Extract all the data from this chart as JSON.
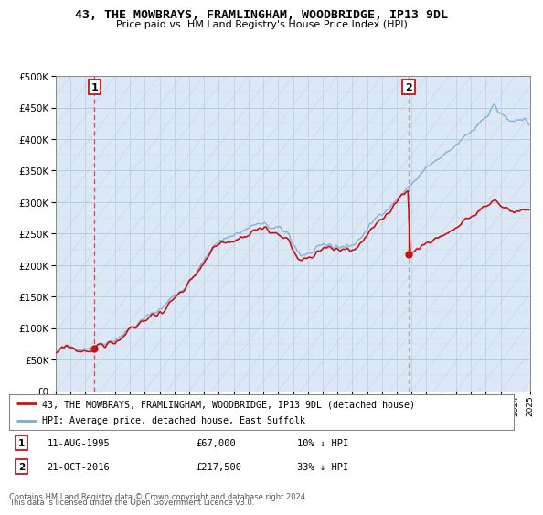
{
  "title": "43, THE MOWBRAYS, FRAMLINGHAM, WOODBRIDGE, IP13 9DL",
  "subtitle": "Price paid vs. HM Land Registry's House Price Index (HPI)",
  "ylim": [
    0,
    500000
  ],
  "yticks": [
    0,
    50000,
    100000,
    150000,
    200000,
    250000,
    300000,
    350000,
    400000,
    450000,
    500000
  ],
  "hpi_color": "#7aadd4",
  "price_color": "#cc1111",
  "marker_color": "#cc1111",
  "sale1_date": "11-AUG-1995",
  "sale1_price": 67000,
  "sale1_x": 1995.62,
  "sale2_date": "21-OCT-2016",
  "sale2_price": 217500,
  "sale2_x": 2016.8,
  "sale1_dashed_color": "#dd4444",
  "sale2_dashed_color": "#aaaaaa",
  "legend_price_label": "43, THE MOWBRAYS, FRAMLINGHAM, WOODBRIDGE, IP13 9DL (detached house)",
  "legend_hpi_label": "HPI: Average price, detached house, East Suffolk",
  "sale1_pct": "10% ↓ HPI",
  "sale2_pct": "33% ↓ HPI",
  "footer": "Contains HM Land Registry data © Crown copyright and database right 2024.\nThis data is licensed under the Open Government Licence v3.0.",
  "bg_color": "#dce8f5",
  "hatch_color": "#c8d8ea"
}
